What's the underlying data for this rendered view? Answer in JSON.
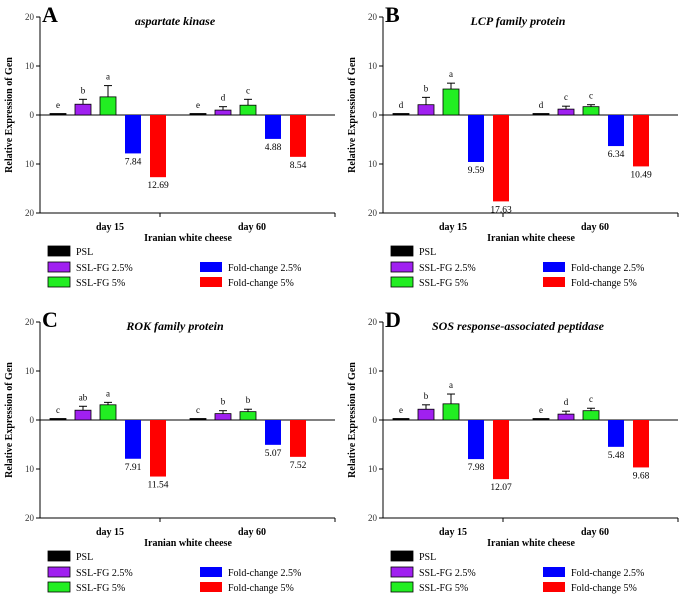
{
  "legend": {
    "PSL": {
      "label": "PSL",
      "color": "#000000"
    },
    "SSL25": {
      "label": "SSL-FG 2.5%",
      "color": "#a020f0"
    },
    "SSL5": {
      "label": "SSL-FG 5%",
      "color": "#22ee22"
    },
    "FC25": {
      "label": "Fold-change 2.5%",
      "color": "#0000ff"
    },
    "FC5": {
      "label": "Fold-change 5%",
      "color": "#ff0000"
    }
  },
  "chart_data": [
    {
      "panel": "A",
      "type": "bar",
      "title": "aspartate kinase",
      "ylabel": "Relative Expression of Gen",
      "xlabel": "Iranian white cheese",
      "ylim": [
        -20,
        20
      ],
      "y_ticks": [
        "20",
        "10",
        "0",
        "10",
        "20"
      ],
      "categories": [
        "day 15",
        "day 60"
      ],
      "series": [
        {
          "key": "PSL",
          "name": "PSL",
          "values": [
            0.2,
            0.2
          ],
          "errors": [
            0,
            0
          ],
          "sig": [
            "e",
            "e"
          ]
        },
        {
          "key": "SSL25",
          "name": "SSL-FG 2.5%",
          "values": [
            2.2,
            1.0
          ],
          "errors": [
            1.0,
            0.7
          ],
          "sig": [
            "b",
            "d"
          ]
        },
        {
          "key": "SSL5",
          "name": "SSL-FG 5%",
          "values": [
            3.7,
            2.0
          ],
          "errors": [
            2.3,
            1.2
          ],
          "sig": [
            "a",
            "c"
          ]
        },
        {
          "key": "FC25",
          "name": "Fold-change 2.5%",
          "values": [
            -7.84,
            -4.88
          ],
          "labels": [
            "7.84",
            "4.88"
          ]
        },
        {
          "key": "FC5",
          "name": "Fold-change 5%",
          "values": [
            -12.69,
            -8.54
          ],
          "labels": [
            "12.69",
            "8.54"
          ]
        }
      ]
    },
    {
      "panel": "B",
      "type": "bar",
      "title": "LCP family protein",
      "ylabel": "Relative Expression of Gen",
      "xlabel": "Iranian white cheese",
      "ylim": [
        -20,
        20
      ],
      "y_ticks": [
        "20",
        "10",
        "0",
        "10",
        "20"
      ],
      "categories": [
        "day 15",
        "day 60"
      ],
      "series": [
        {
          "key": "PSL",
          "name": "PSL",
          "values": [
            0.2,
            0.2
          ],
          "errors": [
            0,
            0
          ],
          "sig": [
            "d",
            "d"
          ]
        },
        {
          "key": "SSL25",
          "name": "SSL-FG 2.5%",
          "values": [
            2.1,
            1.2
          ],
          "errors": [
            1.5,
            0.6
          ],
          "sig": [
            "b",
            "c"
          ]
        },
        {
          "key": "SSL5",
          "name": "SSL-FG 5%",
          "values": [
            5.3,
            1.7
          ],
          "errors": [
            1.2,
            0.4
          ],
          "sig": [
            "a",
            "c"
          ]
        },
        {
          "key": "FC25",
          "name": "Fold-change 2.5%",
          "values": [
            -9.59,
            -6.34
          ],
          "labels": [
            "9.59",
            "6.34"
          ]
        },
        {
          "key": "FC5",
          "name": "Fold-change 5%",
          "values": [
            -17.63,
            -10.49
          ],
          "labels": [
            "17.63",
            "10.49"
          ]
        }
      ]
    },
    {
      "panel": "C",
      "type": "bar",
      "title": "ROK family protein",
      "ylabel": "Relative Expression of Gen",
      "xlabel": "Iranian white cheese",
      "ylim": [
        -20,
        20
      ],
      "y_ticks": [
        "20",
        "10",
        "0",
        "10",
        "20"
      ],
      "categories": [
        "day 15",
        "day 60"
      ],
      "series": [
        {
          "key": "PSL",
          "name": "PSL",
          "values": [
            0.2,
            0.2
          ],
          "errors": [
            0,
            0
          ],
          "sig": [
            "c",
            "c"
          ]
        },
        {
          "key": "SSL25",
          "name": "SSL-FG 2.5%",
          "values": [
            2.0,
            1.3
          ],
          "errors": [
            0.8,
            0.6
          ],
          "sig": [
            "ab",
            "b"
          ]
        },
        {
          "key": "SSL5",
          "name": "SSL-FG 5%",
          "values": [
            3.1,
            1.7
          ],
          "errors": [
            0.5,
            0.5
          ],
          "sig": [
            "a",
            "b"
          ]
        },
        {
          "key": "FC25",
          "name": "Fold-change 2.5%",
          "values": [
            -7.91,
            -5.07
          ],
          "labels": [
            "7.91",
            "5.07"
          ]
        },
        {
          "key": "FC5",
          "name": "Fold-change 5%",
          "values": [
            -11.54,
            -7.52
          ],
          "labels": [
            "11.54",
            "7.52"
          ]
        }
      ]
    },
    {
      "panel": "D",
      "type": "bar",
      "title": "SOS response-associated peptidase",
      "ylabel": "Relative Expression of Gen",
      "xlabel": "Iranian white cheese",
      "ylim": [
        -20,
        20
      ],
      "y_ticks": [
        "20",
        "10",
        "0",
        "10",
        "20"
      ],
      "categories": [
        "day 15",
        "day 60"
      ],
      "series": [
        {
          "key": "PSL",
          "name": "PSL",
          "values": [
            0.2,
            0.2
          ],
          "errors": [
            0,
            0
          ],
          "sig": [
            "e",
            "e"
          ]
        },
        {
          "key": "SSL25",
          "name": "SSL-FG 2.5%",
          "values": [
            2.2,
            1.2
          ],
          "errors": [
            0.9,
            0.6
          ],
          "sig": [
            "b",
            "d"
          ]
        },
        {
          "key": "SSL5",
          "name": "SSL-FG 5%",
          "values": [
            3.3,
            1.9
          ],
          "errors": [
            2.0,
            0.5
          ],
          "sig": [
            "a",
            "c"
          ]
        },
        {
          "key": "FC25",
          "name": "Fold-change 2.5%",
          "values": [
            -7.98,
            -5.48
          ],
          "labels": [
            "7.98",
            "5.48"
          ]
        },
        {
          "key": "FC5",
          "name": "Fold-change 5%",
          "values": [
            -12.07,
            -9.68
          ],
          "labels": [
            "12.07",
            "9.68"
          ]
        }
      ]
    }
  ]
}
